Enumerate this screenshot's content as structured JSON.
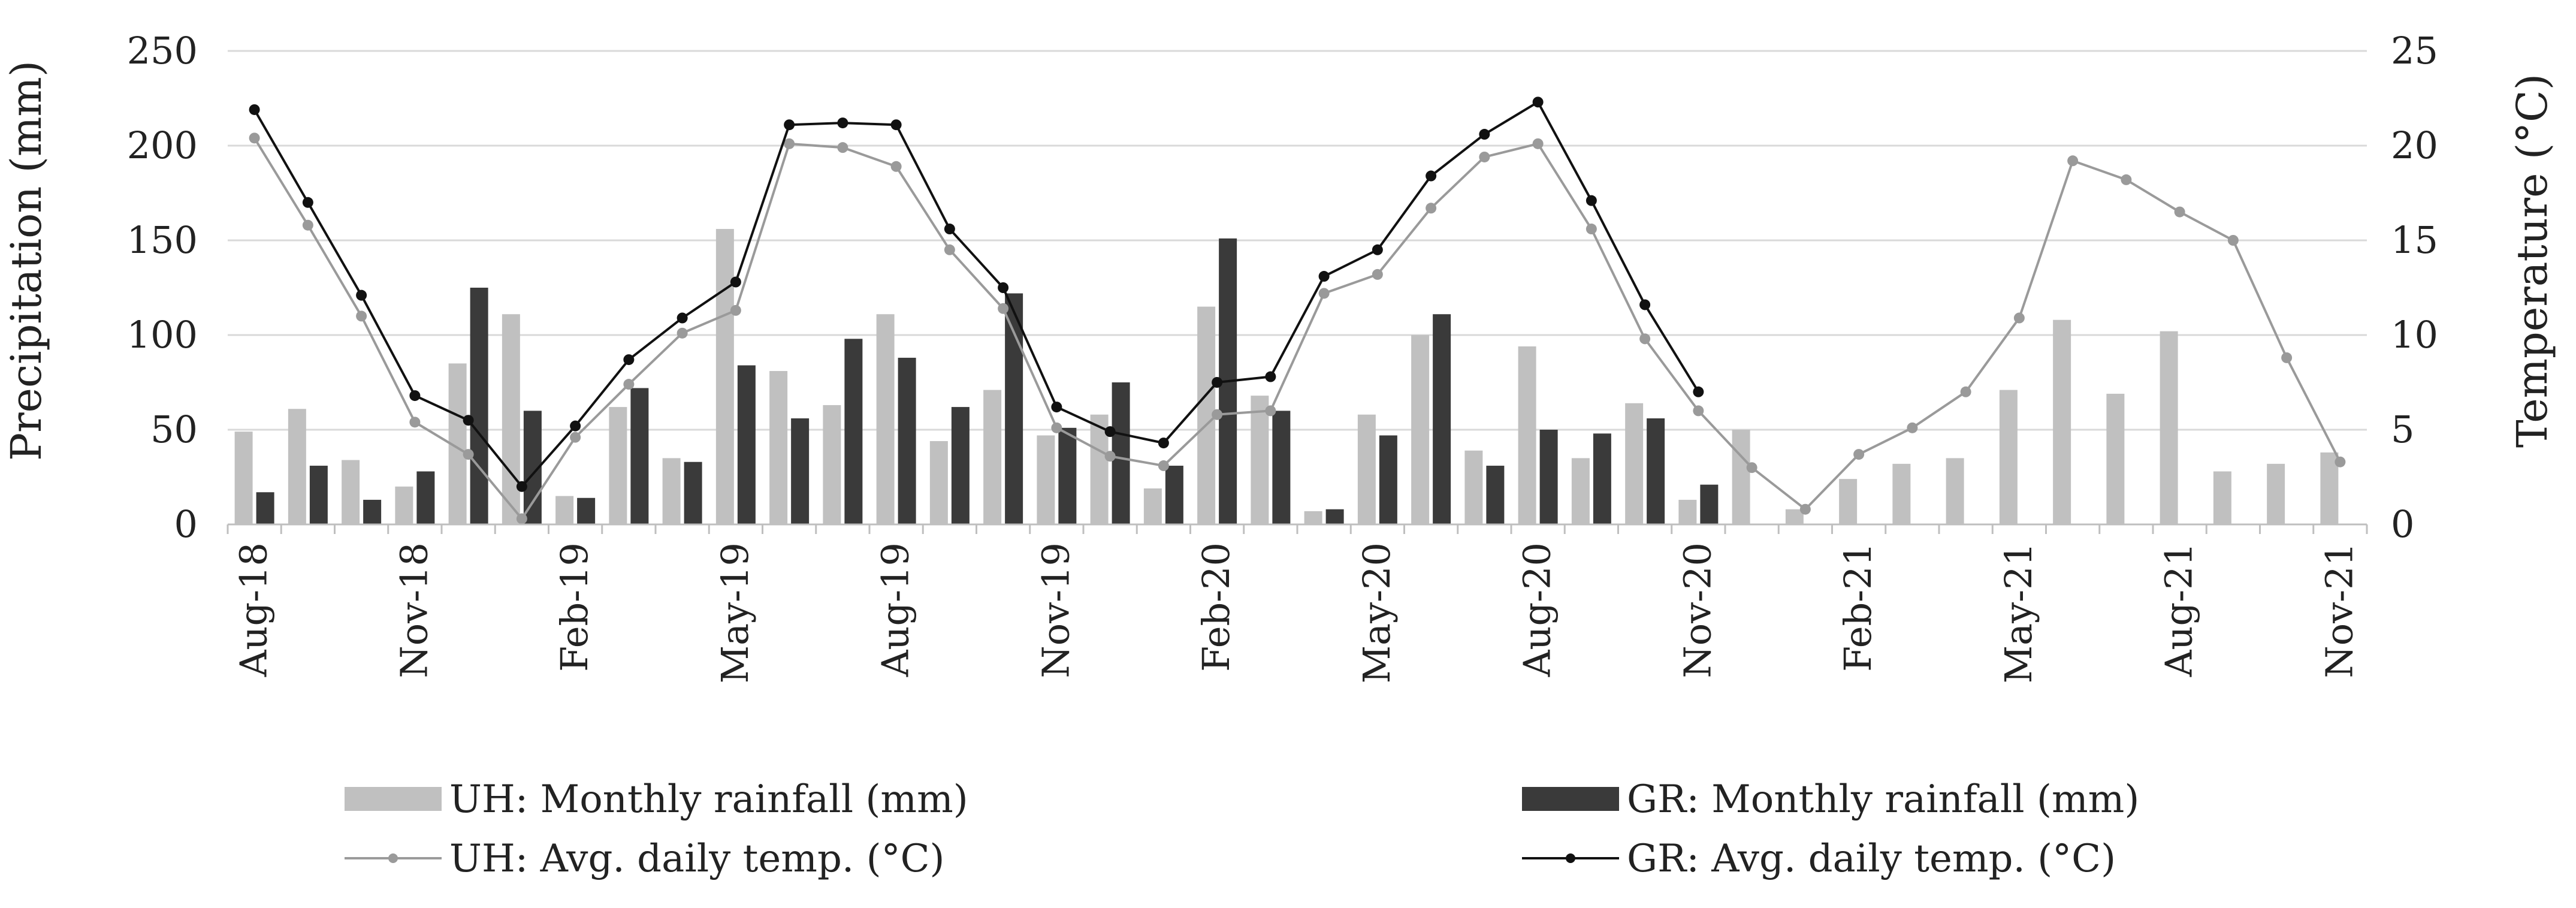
{
  "chart_data": {
    "type": "bar+line",
    "title": "",
    "months": [
      "Aug-18",
      "Sep-18",
      "Oct-18",
      "Nov-18",
      "Dec-18",
      "Jan-19",
      "Feb-19",
      "Mar-19",
      "Apr-19",
      "May-19",
      "Jun-19",
      "Jul-19",
      "Aug-19",
      "Sep-19",
      "Oct-19",
      "Nov-19",
      "Dec-19",
      "Jan-20",
      "Feb-20",
      "Mar-20",
      "Apr-20",
      "May-20",
      "Jun-20",
      "Jul-20",
      "Aug-20",
      "Sep-20",
      "Oct-20",
      "Nov-20",
      "Dec-20",
      "Jan-21",
      "Feb-21",
      "Mar-21",
      "Apr-21",
      "May-21",
      "Jun-21",
      "Jul-21",
      "Aug-21",
      "Sep-21",
      "Oct-21",
      "Nov-21"
    ],
    "x_tick_labels": [
      "Aug-18",
      "Nov-18",
      "Feb-19",
      "May-19",
      "Aug-19",
      "Nov-19",
      "Feb-20",
      "May-20",
      "Aug-20",
      "Nov-20",
      "Feb-21",
      "May-21",
      "Aug-21",
      "Nov-21"
    ],
    "y_left": {
      "label": "Precipitation (mm)",
      "range": [
        0,
        250
      ],
      "ticks": [
        "0",
        "50",
        "100",
        "150",
        "200",
        "250"
      ]
    },
    "y_right": {
      "label": "Temperature (°C)",
      "range": [
        0,
        25
      ],
      "ticks": [
        "0",
        "5",
        "10",
        "15",
        "20",
        "25"
      ]
    },
    "grid": "horizontal",
    "legend_position": "bottom",
    "series": [
      {
        "name": "UH: Monthly rainfall (mm)",
        "kind": "bar",
        "axis": "left",
        "color": "#c0c0c0",
        "values": [
          49,
          61,
          34,
          20,
          85,
          111,
          15,
          62,
          35,
          156,
          81,
          63,
          111,
          44,
          71,
          47,
          58,
          19,
          115,
          68,
          7,
          58,
          100,
          39,
          94,
          35,
          64,
          13,
          50,
          8,
          24,
          32,
          35,
          71,
          108,
          69,
          102,
          28,
          32,
          38
        ]
      },
      {
        "name": "GR: Monthly rainfall (mm)",
        "kind": "bar",
        "axis": "left",
        "color": "#3a3a3a",
        "values": [
          17,
          31,
          13,
          28,
          125,
          60,
          14,
          72,
          33,
          84,
          56,
          98,
          88,
          62,
          122,
          51,
          75,
          31,
          151,
          60,
          8,
          47,
          111,
          31,
          50,
          48,
          56,
          21,
          null,
          null,
          null,
          null,
          null,
          null,
          null,
          null,
          null,
          null,
          null,
          null
        ]
      },
      {
        "name": "UH: Avg. daily temp. (°C)",
        "kind": "line",
        "axis": "right",
        "color": "#9a9a9a",
        "values": [
          20.4,
          15.8,
          11.0,
          5.4,
          3.7,
          0.3,
          4.6,
          7.4,
          10.1,
          11.3,
          20.1,
          19.9,
          18.9,
          14.5,
          11.4,
          5.1,
          3.6,
          3.1,
          5.8,
          6.0,
          12.2,
          13.2,
          16.7,
          19.4,
          20.1,
          15.6,
          9.8,
          6.0,
          3.0,
          0.8,
          3.7,
          5.1,
          7.0,
          10.9,
          19.2,
          18.2,
          16.5,
          15.0,
          8.8,
          3.3
        ]
      },
      {
        "name": "GR: Avg. daily temp. (°C)",
        "kind": "line",
        "axis": "right",
        "color": "#111111",
        "values": [
          21.9,
          17.0,
          12.1,
          6.8,
          5.5,
          2.0,
          5.2,
          8.7,
          10.9,
          12.8,
          21.1,
          21.2,
          21.1,
          15.6,
          12.5,
          6.2,
          4.9,
          4.3,
          7.5,
          7.8,
          13.1,
          14.5,
          18.4,
          20.6,
          22.3,
          17.1,
          11.6,
          7.0,
          null,
          null,
          null,
          null,
          null,
          null,
          null,
          null,
          null,
          null,
          null,
          null
        ]
      }
    ]
  }
}
